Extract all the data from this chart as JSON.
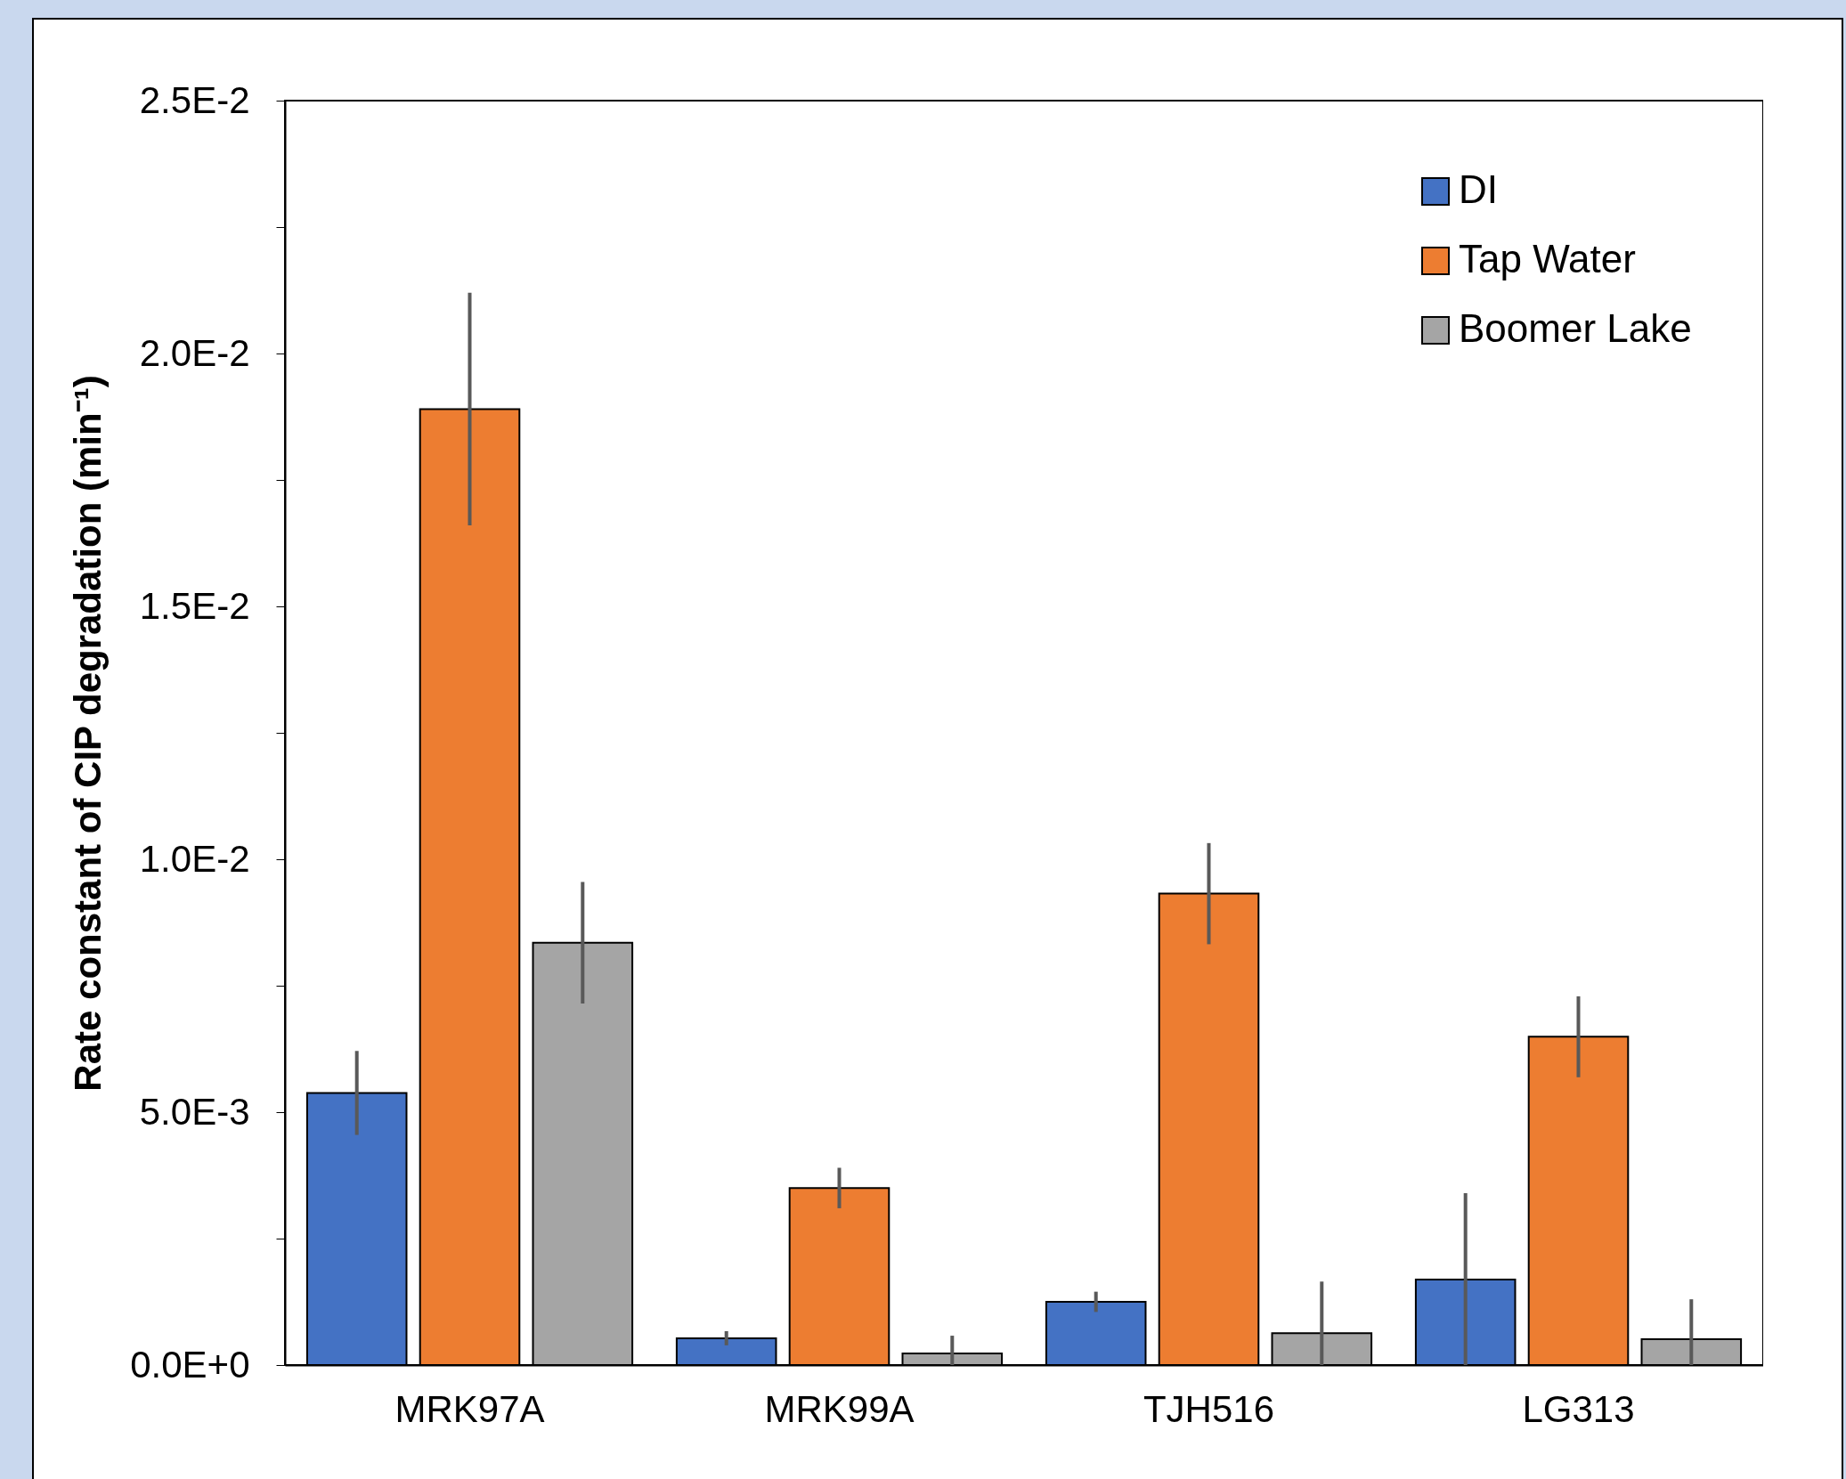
{
  "chart_data": {
    "type": "bar",
    "ylabel": "Rate constant of CIP degradation (min⁻¹)",
    "categories": [
      "MRK97A",
      "MRK99A",
      "TJH516",
      "LG313"
    ],
    "series": [
      {
        "name": "DI",
        "color": "#4472c4",
        "values": [
          0.00538,
          0.00053,
          0.00125,
          0.00169
        ],
        "errors": [
          0.00083,
          0.00014,
          0.0002,
          [
            0,
            0.0034
          ]
        ]
      },
      {
        "name": "Tap Water",
        "color": "#ed7d31",
        "values": [
          0.0189,
          0.0035,
          0.00932,
          0.00649
        ],
        "errors": [
          0.0023,
          0.0004,
          0.001,
          0.0008
        ]
      },
      {
        "name": "Boomer Lake",
        "color": "#a5a5a5",
        "values": [
          0.00835,
          0.00023,
          0.00063,
          0.00051
        ],
        "errors": [
          0.0012,
          [
            0,
            0.00058
          ],
          [
            0,
            0.00165
          ],
          [
            0,
            0.0013
          ]
        ]
      }
    ],
    "ylim": [
      0,
      0.025
    ],
    "yticks": [
      {
        "value": 0,
        "label": "0.0E+0"
      },
      {
        "value": 0.0025,
        "label": null
      },
      {
        "value": 0.005,
        "label": "5.0E-3"
      },
      {
        "value": 0.0075,
        "label": null
      },
      {
        "value": 0.01,
        "label": "1.0E-2"
      },
      {
        "value": 0.0125,
        "label": null
      },
      {
        "value": 0.015,
        "label": "1.5E-2"
      },
      {
        "value": 0.0175,
        "label": null
      },
      {
        "value": 0.02,
        "label": "2.0E-2"
      },
      {
        "value": 0.0225,
        "label": null
      },
      {
        "value": 0.025,
        "label": "2.5E-2"
      }
    ],
    "grid": false,
    "legend": "top right"
  }
}
